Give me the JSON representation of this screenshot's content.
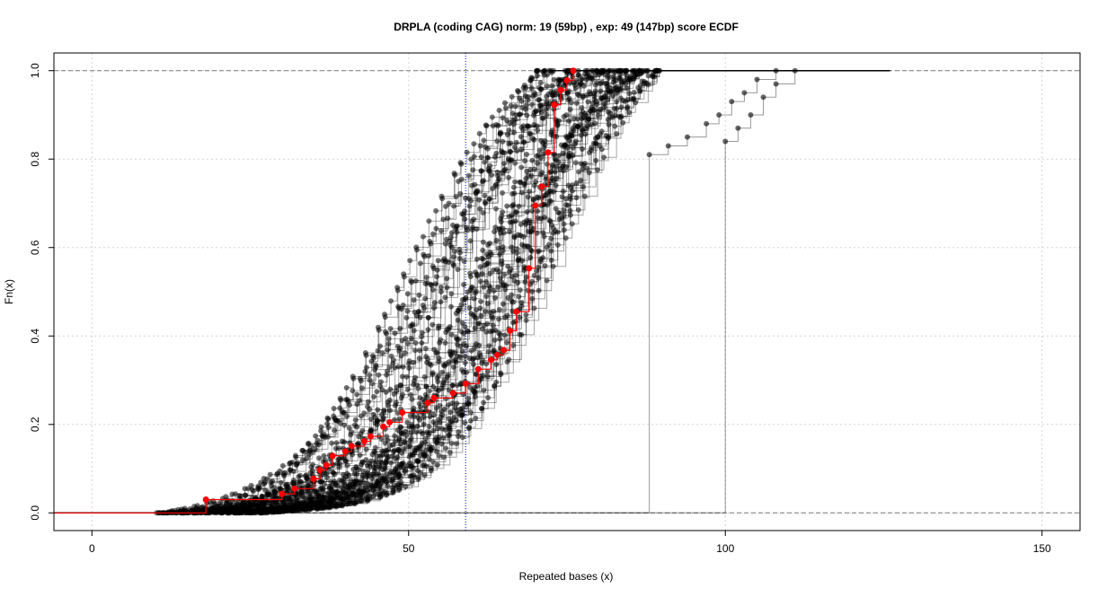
{
  "chart_data": {
    "type": "line",
    "subtype": "ecdf-step",
    "title": "DRPLA (coding CAG) norm: 19 (59bp) , exp: 49 (147bp) score ECDF",
    "xlabel": "Repeated bases (x)",
    "ylabel": "Fn(x)",
    "xlim": [
      -6,
      156
    ],
    "ylim": [
      -0.04,
      1.04
    ],
    "xticks": [
      0,
      50,
      100,
      150
    ],
    "yticks": [
      0.0,
      0.2,
      0.4,
      0.6,
      0.8,
      1.0
    ],
    "xtick_labels": [
      "0",
      "50",
      "100",
      "150"
    ],
    "ytick_labels": [
      "0.0",
      "0.2",
      "0.4",
      "0.6",
      "0.8",
      "1.0"
    ],
    "grid": true,
    "reference_lines": {
      "horizontal": [
        0,
        1
      ],
      "vertical": [
        59
      ]
    },
    "colors": {
      "background_series": "#000000",
      "highlight_series": "#ff0000",
      "reference_vline": "#0000cc",
      "reference_hline": "#888888",
      "grid": "#d3d3d3"
    },
    "highlight_series": {
      "points": [
        [
          18,
          0.03
        ],
        [
          30,
          0.043
        ],
        [
          32,
          0.055
        ],
        [
          35,
          0.077
        ],
        [
          36,
          0.097
        ],
        [
          37,
          0.108
        ],
        [
          38,
          0.129
        ],
        [
          40,
          0.139
        ],
        [
          41,
          0.151
        ],
        [
          43,
          0.162
        ],
        [
          44,
          0.173
        ],
        [
          46,
          0.195
        ],
        [
          47,
          0.205
        ],
        [
          49,
          0.227
        ],
        [
          53,
          0.249
        ],
        [
          54,
          0.26
        ],
        [
          57,
          0.271
        ],
        [
          59,
          0.292
        ],
        [
          61,
          0.325
        ],
        [
          63,
          0.346
        ],
        [
          64,
          0.357
        ],
        [
          65,
          0.368
        ],
        [
          66,
          0.412
        ],
        [
          67,
          0.455
        ],
        [
          69,
          0.553
        ],
        [
          70,
          0.695
        ],
        [
          71,
          0.738
        ],
        [
          72,
          0.815
        ],
        [
          73,
          0.923
        ],
        [
          74,
          0.956
        ],
        [
          75,
          0.978
        ],
        [
          76,
          1.0
        ]
      ]
    },
    "background_series": {
      "count": 60,
      "start_min": 10,
      "start_max": 28,
      "end_min": 70,
      "end_max": 90,
      "outliers": [
        {
          "points": [
            [
              88,
              0.81
            ],
            [
              91,
              0.83
            ],
            [
              94,
              0.85
            ],
            [
              97,
              0.88
            ],
            [
              99,
              0.9
            ],
            [
              101,
              0.93
            ],
            [
              103,
              0.95
            ],
            [
              105,
              0.98
            ],
            [
              108,
              1.0
            ]
          ]
        },
        {
          "points": [
            [
              100,
              0.84
            ],
            [
              102,
              0.87
            ],
            [
              104,
              0.9
            ],
            [
              106,
              0.94
            ],
            [
              108,
              0.97
            ],
            [
              111,
              1.0
            ]
          ]
        }
      ]
    }
  }
}
